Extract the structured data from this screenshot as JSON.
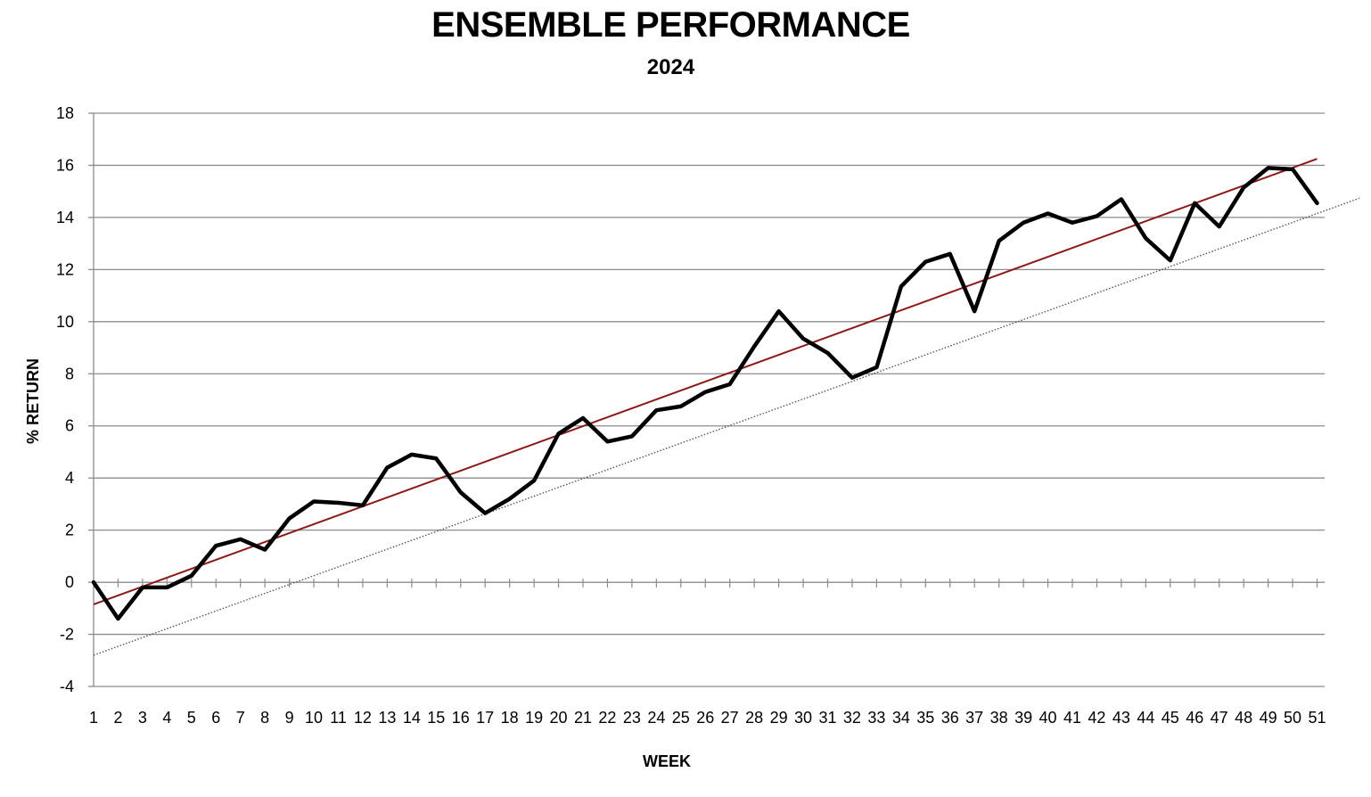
{
  "chart_data": {
    "type": "line",
    "title": "ENSEMBLE PERFORMANCE",
    "subtitle": "2024",
    "xlabel": "WEEK",
    "ylabel": "% RETURN",
    "ylim": [
      -4,
      18
    ],
    "yticks": [
      -4,
      -2,
      0,
      2,
      4,
      6,
      8,
      10,
      12,
      14,
      16,
      18
    ],
    "grid": true,
    "x": [
      1,
      2,
      3,
      4,
      5,
      6,
      7,
      8,
      9,
      10,
      11,
      12,
      13,
      14,
      15,
      16,
      17,
      18,
      19,
      20,
      21,
      22,
      23,
      24,
      25,
      26,
      27,
      28,
      29,
      30,
      31,
      32,
      33,
      34,
      35,
      36,
      37,
      38,
      39,
      40,
      41,
      42,
      43,
      44,
      45,
      46,
      47,
      48,
      49,
      50,
      51
    ],
    "series": [
      {
        "color": "#000000",
        "values": [
          0,
          -1.4,
          -0.2,
          -0.2,
          0.25,
          1.4,
          1.65,
          1.25,
          2.45,
          3.1,
          3.05,
          2.95,
          4.4,
          4.9,
          4.75,
          3.45,
          2.65,
          3.2,
          3.9,
          5.7,
          6.3,
          5.4,
          5.6,
          6.6,
          6.75,
          7.3,
          7.6,
          9.05,
          10.4,
          9.35,
          8.8,
          7.85,
          8.25,
          11.35,
          12.3,
          12.6,
          10.4,
          13.1,
          13.8,
          14.15,
          13.8,
          14.05,
          14.7,
          13.2,
          12.35,
          14.55,
          13.65,
          15.15,
          15.9,
          15.85,
          14.55
        ]
      },
      {
        "color": "#8b1a1a",
        "values_at_ends": [
          -0.85,
          16.25
        ]
      },
      {
        "color": "#555555",
        "style": "dotted",
        "values_at_ends": [
          -2.8,
          14.15
        ]
      }
    ]
  }
}
